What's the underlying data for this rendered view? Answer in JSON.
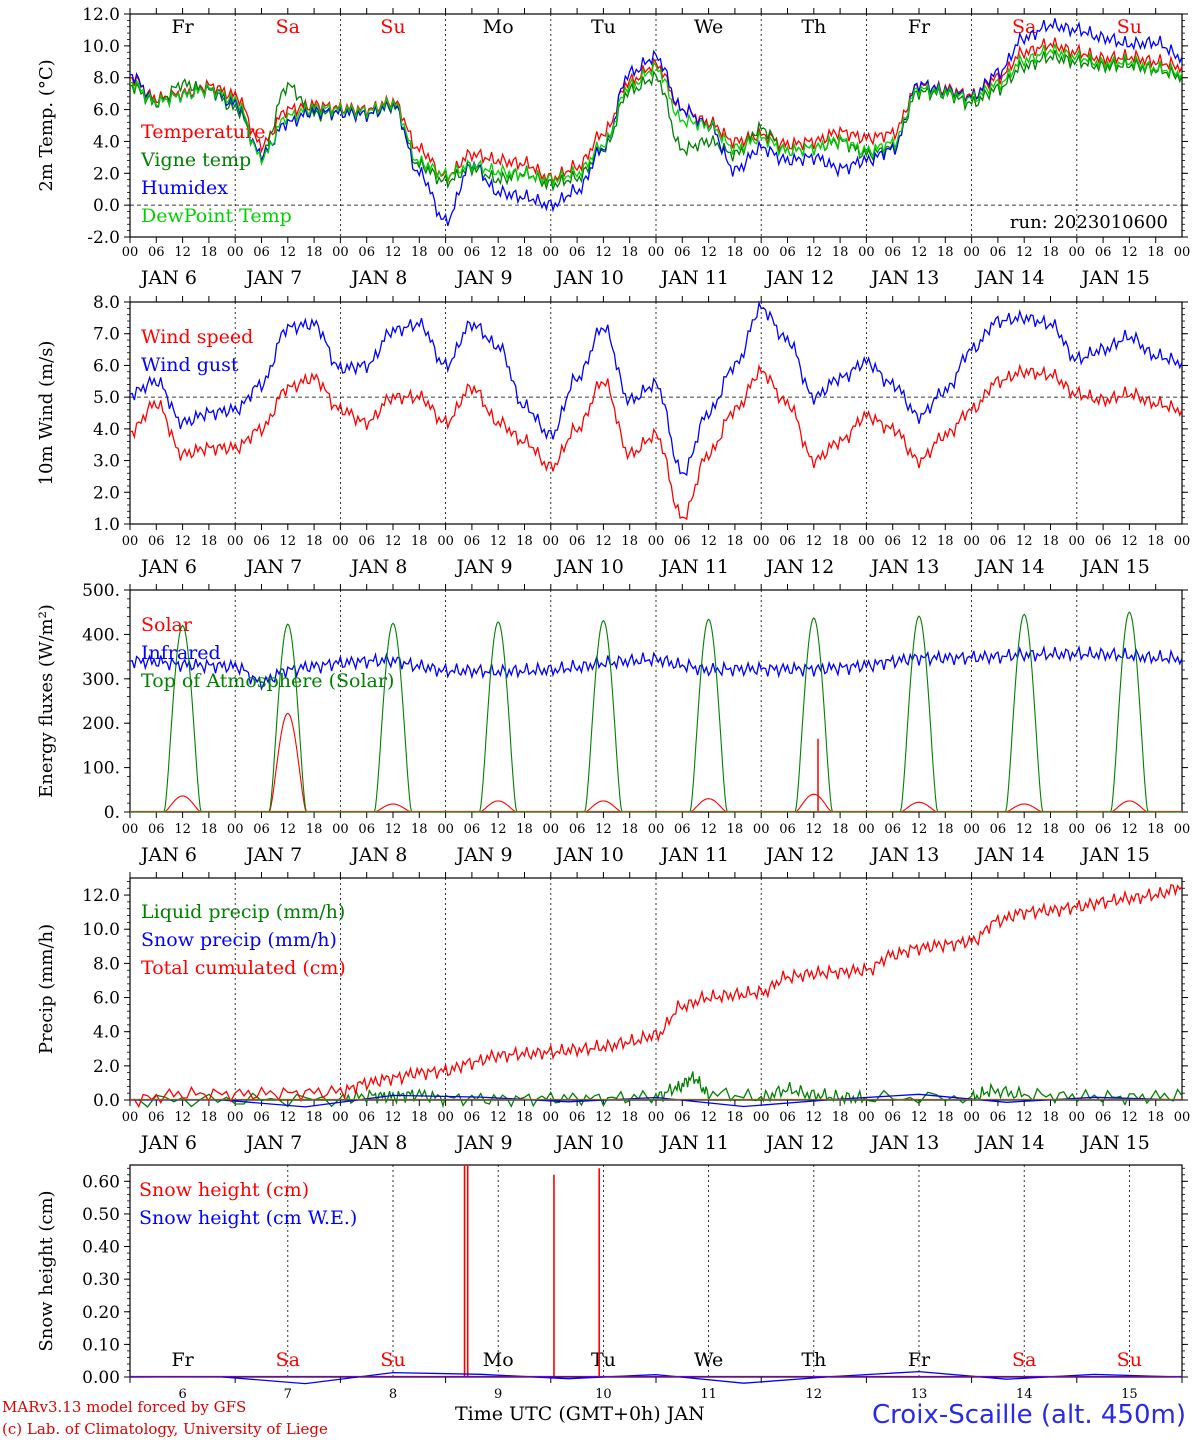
{
  "days": [
    "Fr",
    "Sa",
    "Su",
    "Mo",
    "Tu",
    "We",
    "Th",
    "Fr",
    "Sa",
    "Su"
  ],
  "weekend_days": [
    "Sa",
    "Su"
  ],
  "date_labels": [
    "JAN   6",
    "JAN   7",
    "JAN   8",
    "JAN   9",
    "JAN  10",
    "JAN  11",
    "JAN  12",
    "JAN  13",
    "JAN  14",
    "JAN  15"
  ],
  "bottom_dates": [
    "6",
    "7",
    "8",
    "9",
    "10",
    "11",
    "12",
    "13",
    "14",
    "15"
  ],
  "hour_ticks": [
    "00",
    "06",
    "12",
    "18"
  ],
  "footer": {
    "model_line": "MARv3.13 model forced by GFS",
    "credit_line": "(c) Lab. of Climatology, University of Liege",
    "time_axis": "Time UTC (GMT+0h) JAN",
    "station": "Croix-Scaille (alt. 450m)"
  },
  "colors": {
    "red": "#ff0000",
    "green": "#008000",
    "blue": "#0000ff",
    "lime": "#00d000",
    "axis": "#000000"
  },
  "chart_data": [
    {
      "type": "line",
      "ylabel": "2m Temp. (°C)",
      "ylim": [
        -2,
        12
      ],
      "yticks": [
        "-2.0",
        "0.0",
        "2.0",
        "4.0",
        "6.0",
        "8.0",
        "10.0",
        "12.0"
      ],
      "ref_line": 0,
      "run_label": "run: 2023010600",
      "x_unit": "day of January 2023 (UTC)",
      "xlim": [
        6,
        16
      ],
      "series": [
        {
          "name": "Temperature",
          "color": "#ff0000",
          "x": [
            6.0,
            6.25,
            6.5,
            6.75,
            7.0,
            7.25,
            7.5,
            7.75,
            8.0,
            8.25,
            8.5,
            8.75,
            9.0,
            9.25,
            9.5,
            9.75,
            10.0,
            10.25,
            10.5,
            10.75,
            11.0,
            11.25,
            11.5,
            11.75,
            12.0,
            12.25,
            12.5,
            12.75,
            13.0,
            13.25,
            13.5,
            13.75,
            14.0,
            14.25,
            14.5,
            14.75,
            15.0,
            15.25,
            15.5,
            15.75,
            16.0
          ],
          "y": [
            8.0,
            6.7,
            7.0,
            7.5,
            6.9,
            3.8,
            6.0,
            6.3,
            6.1,
            6.0,
            6.5,
            3.5,
            1.8,
            3.2,
            2.8,
            2.6,
            1.7,
            2.4,
            4.5,
            7.8,
            8.8,
            6.0,
            5.2,
            4.0,
            4.4,
            3.8,
            4.0,
            4.6,
            4.2,
            4.5,
            7.5,
            7.3,
            6.9,
            8.0,
            9.6,
            10.1,
            9.6,
            9.2,
            9.3,
            9.0,
            8.7
          ]
        },
        {
          "name": "Vigne temp",
          "color": "#008000",
          "x": [
            6.0,
            6.25,
            6.5,
            6.75,
            7.0,
            7.25,
            7.5,
            7.75,
            8.0,
            8.25,
            8.5,
            8.75,
            9.0,
            9.25,
            9.5,
            9.75,
            10.0,
            10.25,
            10.5,
            10.75,
            11.0,
            11.25,
            11.5,
            11.75,
            12.0,
            12.25,
            12.5,
            12.75,
            13.0,
            13.25,
            13.5,
            13.75,
            14.0,
            14.25,
            14.5,
            14.75,
            15.0,
            15.25,
            15.5,
            15.75,
            16.0
          ],
          "y": [
            7.5,
            6.4,
            7.6,
            7.2,
            6.1,
            3.2,
            7.5,
            5.7,
            5.8,
            5.7,
            6.2,
            2.5,
            1.5,
            2.3,
            1.6,
            2.0,
            1.3,
            1.7,
            3.5,
            7.2,
            8.0,
            3.5,
            4.0,
            3.2,
            4.8,
            3.4,
            3.6,
            4.0,
            3.2,
            3.6,
            7.1,
            7.0,
            6.4,
            7.3,
            8.7,
            9.3,
            9.0,
            8.7,
            8.8,
            8.5,
            8.1
          ]
        },
        {
          "name": "Humidex",
          "color": "#0000ff",
          "x": [
            6.0,
            6.25,
            6.5,
            6.75,
            7.0,
            7.25,
            7.5,
            7.75,
            8.0,
            8.25,
            8.5,
            8.75,
            9.0,
            9.25,
            9.5,
            9.75,
            10.0,
            10.25,
            10.5,
            10.75,
            11.0,
            11.25,
            11.5,
            11.75,
            12.0,
            12.25,
            12.5,
            12.75,
            13.0,
            13.25,
            13.5,
            13.75,
            14.0,
            14.25,
            14.5,
            14.75,
            15.0,
            15.25,
            15.5,
            15.75,
            16.0
          ],
          "y": [
            8.2,
            6.5,
            6.9,
            7.3,
            6.4,
            3.2,
            5.2,
            5.9,
            5.8,
            5.7,
            6.3,
            2.0,
            -1.0,
            2.6,
            0.8,
            0.5,
            0.0,
            0.9,
            3.6,
            8.3,
            9.3,
            6.0,
            5.0,
            2.2,
            3.6,
            2.8,
            3.0,
            2.3,
            2.8,
            3.5,
            7.6,
            7.2,
            6.8,
            8.3,
            10.5,
            11.3,
            11.0,
            10.5,
            10.1,
            10.2,
            9.3
          ]
        },
        {
          "name": "DewPoint Temp",
          "color": "#00d000",
          "x": [
            6.0,
            6.25,
            6.5,
            6.75,
            7.0,
            7.25,
            7.5,
            7.75,
            8.0,
            8.25,
            8.5,
            8.75,
            9.0,
            9.25,
            9.5,
            9.75,
            10.0,
            10.25,
            10.5,
            10.75,
            11.0,
            11.25,
            11.5,
            11.75,
            12.0,
            12.25,
            12.5,
            12.75,
            13.0,
            13.25,
            13.5,
            13.75,
            14.0,
            14.25,
            14.5,
            14.75,
            15.0,
            15.25,
            15.5,
            15.75,
            16.0
          ],
          "y": [
            7.7,
            6.5,
            6.9,
            7.3,
            6.6,
            3.0,
            5.6,
            6.1,
            6.0,
            5.9,
            6.4,
            2.7,
            1.9,
            2.5,
            2.1,
            1.9,
            1.6,
            2.0,
            3.8,
            7.5,
            8.6,
            5.3,
            5.0,
            3.6,
            4.2,
            3.4,
            3.6,
            4.1,
            3.4,
            3.9,
            7.3,
            7.1,
            6.7,
            7.6,
            9.1,
            9.7,
            9.3,
            8.9,
            9.0,
            8.6,
            8.3
          ]
        }
      ]
    },
    {
      "type": "line",
      "ylabel": "10m Wind (m/s)",
      "ylim": [
        1,
        8
      ],
      "yticks": [
        "1.0",
        "2.0",
        "3.0",
        "4.0",
        "5.0",
        "6.0",
        "7.0",
        "8.0"
      ],
      "ref_line": 5,
      "x_unit": "day of January 2023 (UTC)",
      "xlim": [
        6,
        16
      ],
      "series": [
        {
          "name": "Wind speed",
          "color": "#ff0000",
          "x": [
            6.0,
            6.25,
            6.5,
            6.75,
            7.0,
            7.25,
            7.5,
            7.75,
            8.0,
            8.25,
            8.5,
            8.75,
            9.0,
            9.25,
            9.5,
            9.75,
            10.0,
            10.25,
            10.5,
            10.75,
            11.0,
            11.25,
            11.5,
            11.75,
            12.0,
            12.25,
            12.5,
            12.75,
            13.0,
            13.25,
            13.5,
            13.75,
            14.0,
            14.25,
            14.5,
            14.75,
            15.0,
            15.25,
            15.5,
            15.75,
            16.0
          ],
          "y": [
            3.9,
            4.8,
            3.2,
            3.4,
            3.4,
            4.0,
            5.3,
            5.6,
            4.6,
            4.2,
            5.0,
            5.0,
            4.2,
            5.3,
            4.2,
            3.6,
            2.8,
            4.0,
            5.5,
            3.2,
            3.8,
            1.2,
            3.2,
            4.6,
            5.8,
            4.8,
            3.0,
            3.6,
            4.4,
            4.0,
            3.0,
            3.8,
            4.6,
            5.5,
            5.8,
            5.7,
            5.1,
            4.9,
            5.1,
            4.8,
            4.6
          ]
        },
        {
          "name": "Wind gust",
          "color": "#0000ff",
          "x": [
            6.0,
            6.25,
            6.5,
            6.75,
            7.0,
            7.25,
            7.5,
            7.75,
            8.0,
            8.25,
            8.5,
            8.75,
            9.0,
            9.25,
            9.5,
            9.75,
            10.0,
            10.25,
            10.5,
            10.75,
            11.0,
            11.25,
            11.5,
            11.75,
            12.0,
            12.25,
            12.5,
            12.75,
            13.0,
            13.25,
            13.5,
            13.75,
            14.0,
            14.25,
            14.5,
            14.75,
            15.0,
            15.25,
            15.5,
            15.75,
            16.0
          ],
          "y": [
            5.1,
            5.5,
            4.2,
            4.5,
            4.6,
            5.4,
            7.2,
            7.3,
            5.9,
            6.0,
            7.1,
            7.3,
            6.0,
            7.3,
            6.6,
            4.7,
            3.8,
            5.6,
            7.2,
            4.9,
            5.4,
            2.6,
            4.5,
            6.0,
            7.8,
            6.8,
            5.0,
            5.6,
            6.1,
            5.4,
            4.4,
            5.2,
            6.5,
            7.4,
            7.5,
            7.3,
            6.2,
            6.5,
            6.9,
            6.3,
            6.1
          ]
        }
      ]
    },
    {
      "type": "line",
      "ylabel": "Energy fluxes (W/m²)",
      "ylim": [
        0,
        500
      ],
      "yticks": [
        "0.",
        "100.",
        "200.",
        "300.",
        "400.",
        "500."
      ],
      "x_unit": "day of January 2023 (UTC)",
      "xlim": [
        6,
        16
      ],
      "series": [
        {
          "name": "Solar",
          "color": "#ff0000",
          "peaks": [
            36,
            222,
            18,
            25,
            25,
            30,
            40,
            22,
            18,
            25
          ],
          "extra": [
            {
              "x": 12.54,
              "y": 165
            }
          ]
        },
        {
          "name": "Infrared",
          "color": "#0000ff",
          "x": [
            6.0,
            6.25,
            6.5,
            6.75,
            7.0,
            7.25,
            7.5,
            7.75,
            8.0,
            8.25,
            8.5,
            8.75,
            9.0,
            9.25,
            9.5,
            9.75,
            10.0,
            10.25,
            10.5,
            10.75,
            11.0,
            11.25,
            11.5,
            11.75,
            12.0,
            12.25,
            12.5,
            12.75,
            13.0,
            13.25,
            13.5,
            13.75,
            14.0,
            14.25,
            14.5,
            14.75,
            15.0,
            15.25,
            15.5,
            15.75,
            16.0
          ],
          "y": [
            340,
            338,
            332,
            330,
            328,
            292,
            320,
            328,
            336,
            340,
            341,
            328,
            318,
            318,
            316,
            318,
            320,
            326,
            335,
            340,
            344,
            330,
            320,
            322,
            322,
            322,
            322,
            325,
            330,
            340,
            347,
            347,
            348,
            350,
            354,
            355,
            356,
            355,
            352,
            347,
            346
          ]
        },
        {
          "name": "Top of Atmosphere (Solar)",
          "color": "#008000",
          "peaks": [
            420,
            423,
            425,
            428,
            431,
            434,
            437,
            441,
            445,
            450
          ]
        }
      ]
    },
    {
      "type": "line",
      "ylabel": "Precip (mm/h)",
      "ylim": [
        0,
        13
      ],
      "yticks": [
        "0.0",
        "2.0",
        "4.0",
        "6.0",
        "8.0",
        "10.0",
        "12.0"
      ],
      "x_unit": "day of January 2023 (UTC)",
      "xlim": [
        6,
        16
      ],
      "series": [
        {
          "name": "Liquid precip (mm/h)",
          "color": "#008000",
          "x": [
            6.0,
            7.0,
            8.0,
            8.3,
            8.5,
            8.7,
            9.0,
            9.5,
            10.0,
            10.5,
            11.0,
            11.2,
            11.35,
            11.5,
            12.0,
            12.25,
            12.5,
            12.75,
            13.0,
            14.0,
            14.2,
            14.5,
            15.0,
            15.5,
            16.0
          ],
          "y": [
            0.0,
            0.0,
            0.05,
            0.25,
            0.2,
            0.35,
            0.1,
            0.05,
            0.1,
            0.1,
            0.2,
            0.7,
            1.3,
            0.4,
            0.15,
            0.6,
            0.3,
            0.15,
            0.1,
            0.15,
            0.55,
            0.3,
            0.2,
            0.15,
            0.25
          ]
        },
        {
          "name": "Snow precip (mm/h)",
          "color": "#0000ff",
          "x": [
            6.0,
            16.0
          ],
          "y": [
            0.0,
            0.0
          ]
        },
        {
          "name": "Total cumulated (cm)",
          "color": "#ff0000",
          "x": [
            6.0,
            6.5,
            7.0,
            7.5,
            8.0,
            8.25,
            8.5,
            8.75,
            9.0,
            9.25,
            9.5,
            9.75,
            10.0,
            10.25,
            10.5,
            10.75,
            11.0,
            11.25,
            11.5,
            11.75,
            12.0,
            12.25,
            12.5,
            12.75,
            13.0,
            13.25,
            13.5,
            13.75,
            14.0,
            14.25,
            14.5,
            14.75,
            15.0,
            15.25,
            15.5,
            15.75,
            16.0
          ],
          "y": [
            0.0,
            0.35,
            0.35,
            0.4,
            0.5,
            1.0,
            1.3,
            1.6,
            1.7,
            2.2,
            2.6,
            2.7,
            2.8,
            2.95,
            3.1,
            3.4,
            3.8,
            5.5,
            6.0,
            6.15,
            6.3,
            7.2,
            7.4,
            7.5,
            7.6,
            8.5,
            8.9,
            9.1,
            9.3,
            10.5,
            11.0,
            11.1,
            11.3,
            11.6,
            11.8,
            12.0,
            12.5
          ]
        }
      ]
    },
    {
      "type": "line",
      "ylabel": "Snow height (cm)",
      "ylim": [
        0,
        0.65
      ],
      "yticks": [
        "0.00",
        "0.10",
        "0.20",
        "0.30",
        "0.40",
        "0.50",
        "0.60"
      ],
      "x_unit": "day of January 2023 (UTC)",
      "xlim": [
        6,
        16
      ],
      "series": [
        {
          "name": "Snow height (cm)",
          "color": "#ff0000",
          "spikes": [
            {
              "x": 9.18,
              "y": 0.65
            },
            {
              "x": 9.21,
              "y": 0.65
            },
            {
              "x": 10.03,
              "y": 0.62
            },
            {
              "x": 10.46,
              "y": 0.64
            }
          ]
        },
        {
          "name": "Snow height (cm W.E.)",
          "color": "#0000ff",
          "x": [
            6.0,
            16.0
          ],
          "y": [
            0.0,
            0.0
          ]
        }
      ]
    }
  ]
}
